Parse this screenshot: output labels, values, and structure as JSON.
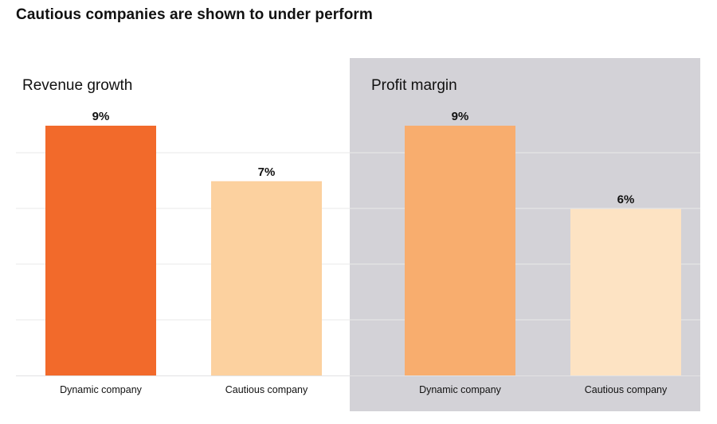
{
  "title": "Cautious companies are shown to under perform",
  "chart_data": [
    {
      "type": "bar",
      "title": "Revenue growth",
      "categories": [
        "Dynamic company",
        "Cautious company"
      ],
      "values": [
        9,
        7
      ],
      "value_labels": [
        "9%",
        "7%"
      ],
      "colors": [
        "#f26a2b",
        "#fcd19f"
      ],
      "ylim": [
        0,
        9
      ],
      "grid": true,
      "background": "#ffffff"
    },
    {
      "type": "bar",
      "title": "Profit margin",
      "categories": [
        "Dynamic company",
        "Cautious company"
      ],
      "values": [
        9,
        6
      ],
      "value_labels": [
        "9%",
        "6%"
      ],
      "colors": [
        "#f8ad6e",
        "#fde3c3"
      ],
      "ylim": [
        0,
        9
      ],
      "grid": true,
      "background": "#d3d2d7"
    }
  ]
}
